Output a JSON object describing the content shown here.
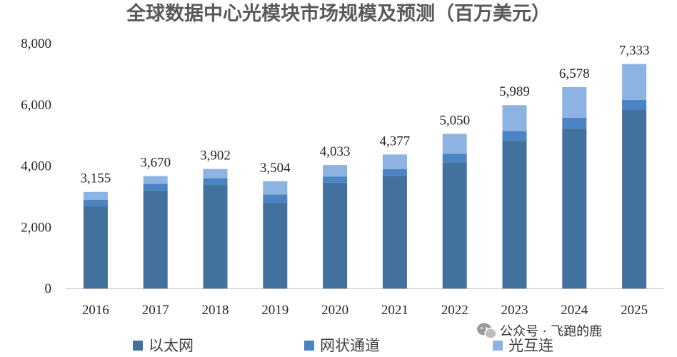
{
  "chart_data": {
    "type": "bar",
    "stacked": true,
    "title": "全球数据中心光模块市场规模及预测（百万美元）",
    "categories": [
      "2016",
      "2017",
      "2018",
      "2019",
      "2020",
      "2021",
      "2022",
      "2023",
      "2024",
      "2025"
    ],
    "series": [
      {
        "name": "以太网",
        "color": "#41719c",
        "values": [
          2700,
          3200,
          3380,
          2800,
          3460,
          3680,
          4120,
          4820,
          5230,
          5830
        ]
      },
      {
        "name": "网状通道",
        "color": "#4a84c4",
        "values": [
          200,
          220,
          220,
          270,
          190,
          220,
          280,
          320,
          350,
          330
        ]
      },
      {
        "name": "光互连",
        "color": "#8db3e2",
        "values": [
          255,
          250,
          302,
          434,
          383,
          477,
          650,
          849,
          998,
          1173
        ]
      }
    ],
    "totals": [
      "3,155",
      "3,670",
      "3,902",
      "3,504",
      "4,033",
      "4,377",
      "5,050",
      "5,989",
      "6,578",
      "7,333"
    ],
    "yticks": [
      "0",
      "2,000",
      "4,000",
      "6,000",
      "8,000"
    ],
    "ylim": [
      0,
      8000
    ],
    "legend_position": "bottom",
    "grid": false
  },
  "watermark": {
    "text": "公众号 · 飞跑的鹿",
    "icon": "wechat-icon"
  }
}
